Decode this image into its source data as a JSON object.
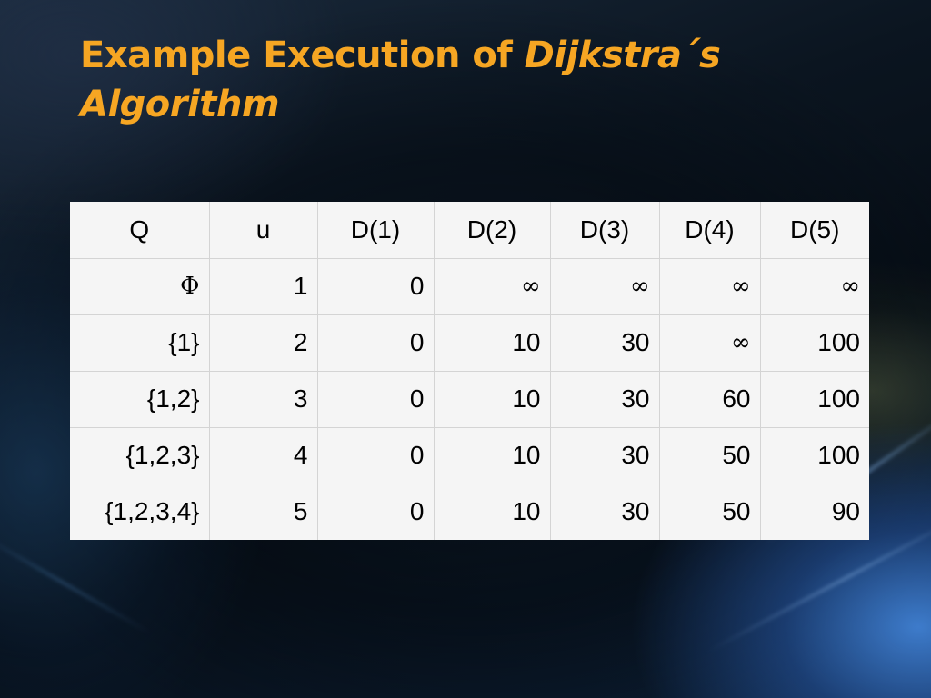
{
  "slide": {
    "title_prefix": "Example Execution of ",
    "title_emphasis": "Dijkstra´s Algorithm"
  },
  "table": {
    "headers": [
      "Q",
      "u",
      "D(1)",
      "D(2)",
      "D(3)",
      "D(4)",
      "D(5)"
    ],
    "rows": [
      [
        "Φ",
        "1",
        "0",
        "∞",
        "∞",
        "∞",
        "∞"
      ],
      [
        "{1}",
        "2",
        "0",
        "10",
        "30",
        "∞",
        "100"
      ],
      [
        "{1,2}",
        "3",
        "0",
        "10",
        "30",
        "60",
        "100"
      ],
      [
        "{1,2,3}",
        "4",
        "0",
        "10",
        "30",
        "50",
        "100"
      ],
      [
        "{1,2,3,4}",
        "5",
        "0",
        "10",
        "30",
        "50",
        "90"
      ]
    ]
  }
}
